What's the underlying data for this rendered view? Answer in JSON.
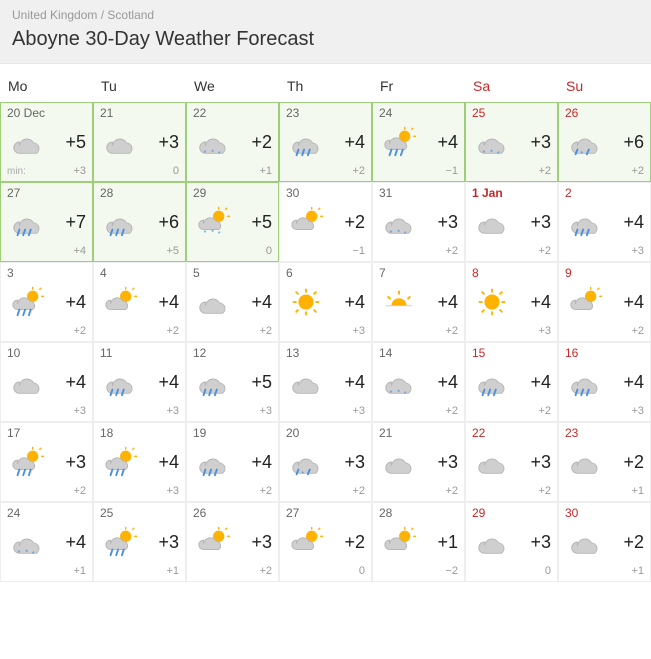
{
  "breadcrumb": {
    "parent": "United Kingdom",
    "child": "Scotland"
  },
  "title": "Aboyne 30-Day Weather Forecast",
  "headers": {
    "weekday": [
      "Mo",
      "Tu",
      "We",
      "Th",
      "Fr"
    ],
    "weekend": [
      "Sa",
      "Su"
    ]
  },
  "colors": {
    "header_bg": "#f0f0f0",
    "highlight_bg": "#f3f9ee",
    "highlight_border": "#9fce7a",
    "cell_border": "#eeeeee",
    "weekend_text": "#c62828",
    "date_text": "#666666",
    "temp_text": "#222222",
    "low_text": "#999999"
  },
  "days": [
    {
      "label": "20 Dec",
      "dow": 0,
      "icon": "cloud",
      "high": "+5",
      "low": "+3",
      "min_label": "min:",
      "hl": true
    },
    {
      "label": "21",
      "dow": 1,
      "icon": "cloud",
      "high": "+3",
      "low": "0",
      "hl": true
    },
    {
      "label": "22",
      "dow": 2,
      "icon": "cloud-snow",
      "high": "+2",
      "low": "+1",
      "hl": true
    },
    {
      "label": "23",
      "dow": 3,
      "icon": "cloud-rain",
      "high": "+4",
      "low": "+2",
      "hl": true
    },
    {
      "label": "24",
      "dow": 4,
      "icon": "partly-rain",
      "high": "+4",
      "low": "−1",
      "hl": true
    },
    {
      "label": "25",
      "dow": 5,
      "icon": "cloud-snow",
      "high": "+3",
      "low": "+2",
      "hl": true
    },
    {
      "label": "26",
      "dow": 6,
      "icon": "cloud-sleet",
      "high": "+6",
      "low": "+2",
      "hl": true
    },
    {
      "label": "27",
      "dow": 0,
      "icon": "cloud-rain",
      "high": "+7",
      "low": "+4",
      "hl": true
    },
    {
      "label": "28",
      "dow": 1,
      "icon": "cloud-rain",
      "high": "+6",
      "low": "+5",
      "hl": true
    },
    {
      "label": "29",
      "dow": 2,
      "icon": "partly-snow",
      "high": "+5",
      "low": "0",
      "hl": true
    },
    {
      "label": "30",
      "dow": 3,
      "icon": "partly",
      "high": "+2",
      "low": "−1"
    },
    {
      "label": "31",
      "dow": 4,
      "icon": "cloud-snow",
      "high": "+3",
      "low": "+2"
    },
    {
      "label": "1 Jan",
      "dow": 5,
      "icon": "cloud",
      "high": "+3",
      "low": "+2",
      "bold": true
    },
    {
      "label": "2",
      "dow": 6,
      "icon": "cloud-rain",
      "high": "+4",
      "low": "+3"
    },
    {
      "label": "3",
      "dow": 0,
      "icon": "partly-rain",
      "high": "+4",
      "low": "+2"
    },
    {
      "label": "4",
      "dow": 1,
      "icon": "partly",
      "high": "+4",
      "low": "+2"
    },
    {
      "label": "5",
      "dow": 2,
      "icon": "cloud",
      "high": "+4",
      "low": "+2"
    },
    {
      "label": "6",
      "dow": 3,
      "icon": "sun",
      "high": "+4",
      "low": "+3"
    },
    {
      "label": "7",
      "dow": 4,
      "icon": "sun-set",
      "high": "+4",
      "low": "+2"
    },
    {
      "label": "8",
      "dow": 5,
      "icon": "sun",
      "high": "+4",
      "low": "+3"
    },
    {
      "label": "9",
      "dow": 6,
      "icon": "partly",
      "high": "+4",
      "low": "+2"
    },
    {
      "label": "10",
      "dow": 0,
      "icon": "cloud",
      "high": "+4",
      "low": "+3"
    },
    {
      "label": "11",
      "dow": 1,
      "icon": "cloud-rain",
      "high": "+4",
      "low": "+3"
    },
    {
      "label": "12",
      "dow": 2,
      "icon": "cloud-rain",
      "high": "+5",
      "low": "+3"
    },
    {
      "label": "13",
      "dow": 3,
      "icon": "cloud",
      "high": "+4",
      "low": "+3"
    },
    {
      "label": "14",
      "dow": 4,
      "icon": "cloud-snow",
      "high": "+4",
      "low": "+2"
    },
    {
      "label": "15",
      "dow": 5,
      "icon": "cloud-rain",
      "high": "+4",
      "low": "+2"
    },
    {
      "label": "16",
      "dow": 6,
      "icon": "cloud-rain",
      "high": "+4",
      "low": "+3"
    },
    {
      "label": "17",
      "dow": 0,
      "icon": "partly-rain",
      "high": "+3",
      "low": "+2"
    },
    {
      "label": "18",
      "dow": 1,
      "icon": "partly-rain",
      "high": "+4",
      "low": "+3"
    },
    {
      "label": "19",
      "dow": 2,
      "icon": "cloud-rain",
      "high": "+4",
      "low": "+2"
    },
    {
      "label": "20",
      "dow": 3,
      "icon": "cloud-sleet",
      "high": "+3",
      "low": "+2"
    },
    {
      "label": "21",
      "dow": 4,
      "icon": "cloud",
      "high": "+3",
      "low": "+2"
    },
    {
      "label": "22",
      "dow": 5,
      "icon": "cloud",
      "high": "+3",
      "low": "+2"
    },
    {
      "label": "23",
      "dow": 6,
      "icon": "cloud",
      "high": "+2",
      "low": "+1"
    },
    {
      "label": "24",
      "dow": 0,
      "icon": "cloud-snow",
      "high": "+4",
      "low": "+1"
    },
    {
      "label": "25",
      "dow": 1,
      "icon": "partly-rain",
      "high": "+3",
      "low": "+1"
    },
    {
      "label": "26",
      "dow": 2,
      "icon": "partly",
      "high": "+3",
      "low": "+2"
    },
    {
      "label": "27",
      "dow": 3,
      "icon": "partly",
      "high": "+2",
      "low": "0"
    },
    {
      "label": "28",
      "dow": 4,
      "icon": "partly",
      "high": "+1",
      "low": "−2"
    },
    {
      "label": "29",
      "dow": 5,
      "icon": "cloud",
      "high": "+3",
      "low": "0"
    },
    {
      "label": "30",
      "dow": 6,
      "icon": "cloud",
      "high": "+2",
      "low": "+1"
    }
  ]
}
